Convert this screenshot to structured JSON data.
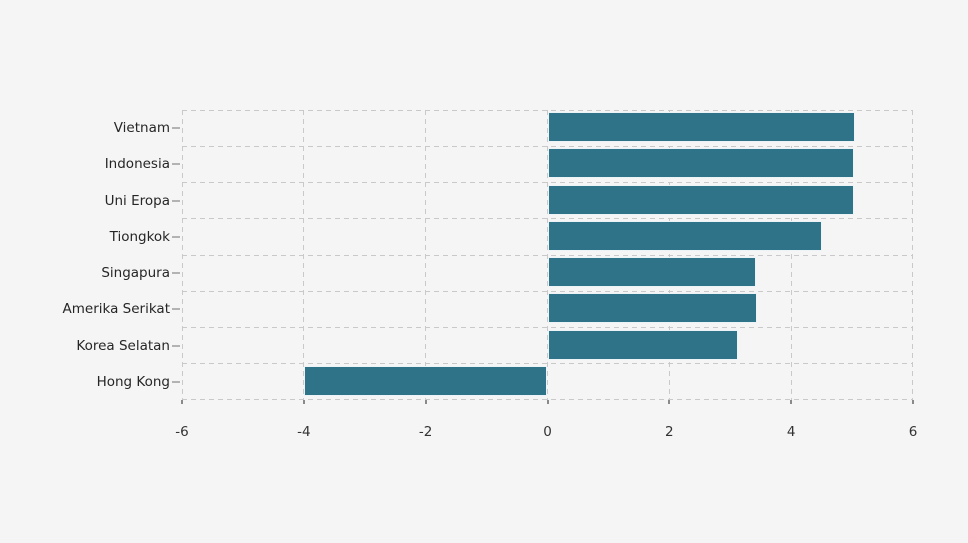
{
  "chart_data": {
    "type": "bar",
    "orientation": "horizontal",
    "title": "",
    "xlabel": "",
    "ylabel": "",
    "legend": "none",
    "grid": "dashed",
    "categories": [
      "Vietnam",
      "Indonesia",
      "Uni Eropa",
      "Tiongkok",
      "Singapura",
      "Amerika Serikat",
      "Korea Selatan",
      "Hong Kong"
    ],
    "values": [
      5.05,
      5.03,
      5.03,
      4.5,
      3.43,
      3.44,
      3.12,
      -4.0
    ],
    "xlim": [
      -6,
      6
    ],
    "x_ticks": [
      -6,
      -4,
      -2,
      0,
      2,
      4,
      6
    ],
    "x_tick_labels": [
      "-6",
      "-4",
      "-2",
      "0",
      "2",
      "4",
      "6"
    ],
    "colors": {
      "bar": "#2f7389",
      "bar_edge": "#ecf4f7",
      "background": "#f5f5f5",
      "grid": "#c9c9c9",
      "label_text": "#262626",
      "tick_text": "#333333"
    }
  }
}
